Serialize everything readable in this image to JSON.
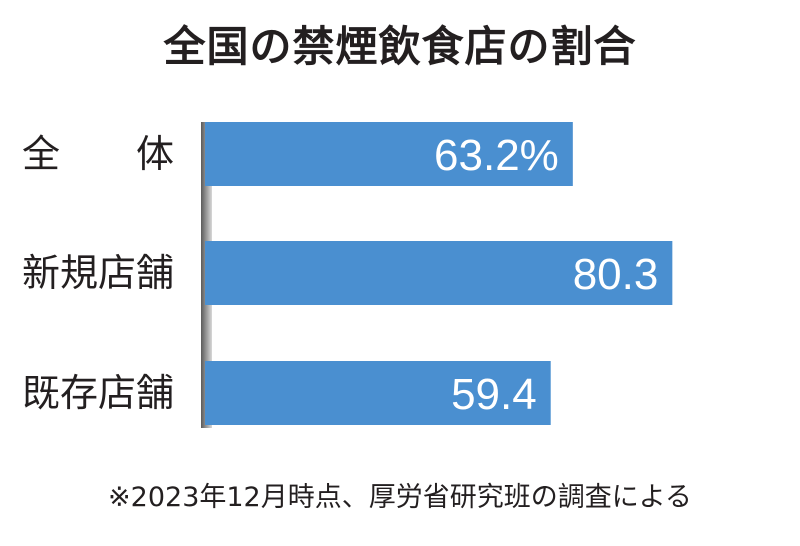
{
  "title": "全国の禁煙飲食店の割合",
  "note": "※2023年12月時点、厚労省研究班の調査による",
  "colors": {
    "bar": "#4a8fd0",
    "bar_label": "#ffffff",
    "text": "#231f20",
    "axis_shadow": "#8a8a8a"
  },
  "chart_data": {
    "type": "bar",
    "orientation": "horizontal",
    "title": "全国の禁煙飲食店の割合",
    "categories": [
      "全　　体",
      "新規店舗",
      "既存店舗"
    ],
    "values": [
      63.2,
      80.3,
      59.4
    ],
    "value_labels": [
      "63.2%",
      "80.3",
      "59.4"
    ],
    "unit": "%",
    "xlim": [
      0,
      100
    ],
    "grid": false,
    "legend": "none"
  }
}
